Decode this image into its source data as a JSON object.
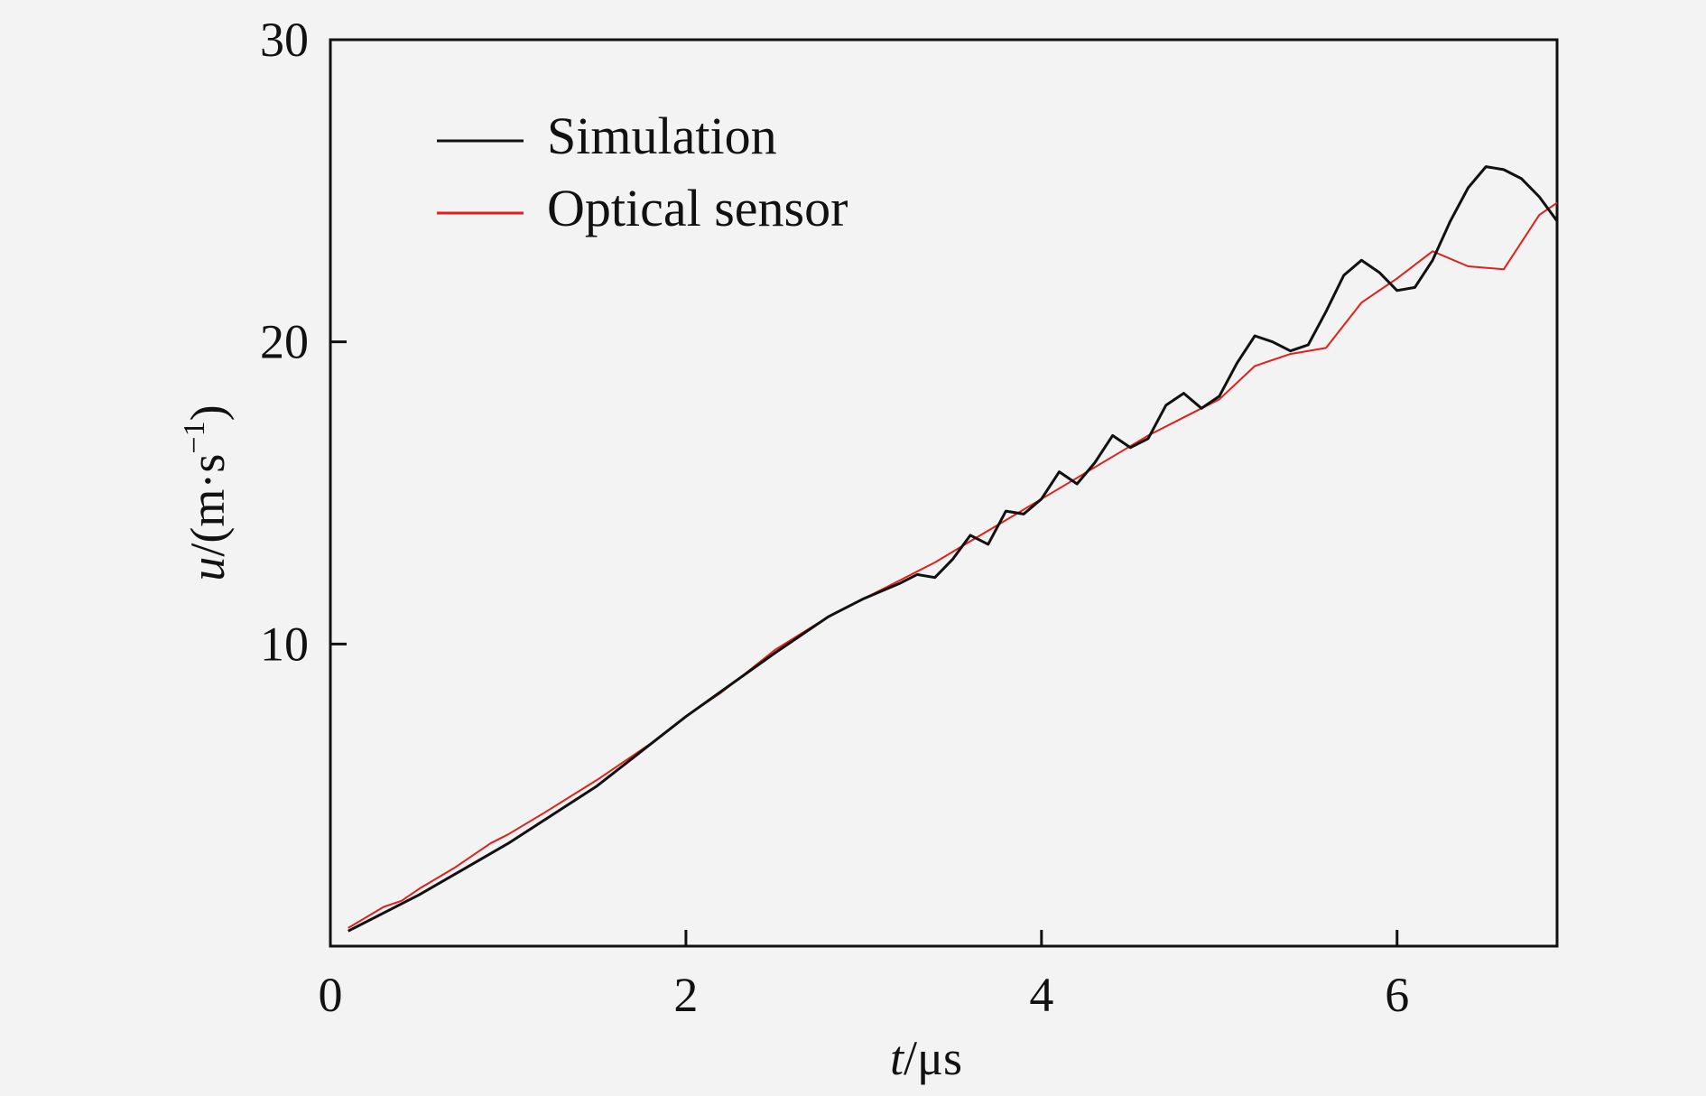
{
  "chart_data": {
    "type": "line",
    "xlabel_var": "t",
    "xlabel_unit": "/μs",
    "ylabel_var": "u",
    "ylabel_unit_pre": "/(m·s",
    "ylabel_unit_sup": "−1",
    "ylabel_unit_post": ")",
    "xlim": [
      0,
      6.9
    ],
    "ylim": [
      0,
      30
    ],
    "x_ticks": [
      0,
      2,
      4,
      6
    ],
    "y_ticks": [
      10,
      20,
      30
    ],
    "x_tick_labels": [
      "0",
      "2",
      "4",
      "6"
    ],
    "y_tick_labels": [
      "10",
      "20",
      "30"
    ],
    "grid": false,
    "legend_position": "top-left",
    "series": [
      {
        "name": "Simulation",
        "color": "#111111",
        "x": [
          0.1,
          0.5,
          1.0,
          1.5,
          2.0,
          2.5,
          2.8,
          3.0,
          3.2,
          3.3,
          3.4,
          3.5,
          3.6,
          3.7,
          3.8,
          3.9,
          4.0,
          4.1,
          4.2,
          4.3,
          4.4,
          4.5,
          4.6,
          4.7,
          4.8,
          4.9,
          5.0,
          5.1,
          5.2,
          5.3,
          5.4,
          5.5,
          5.6,
          5.7,
          5.8,
          5.9,
          6.0,
          6.1,
          6.2,
          6.3,
          6.4,
          6.5,
          6.6,
          6.7,
          6.8,
          6.9
        ],
        "y": [
          0.5,
          1.7,
          3.4,
          5.3,
          7.6,
          9.7,
          10.9,
          11.5,
          12.0,
          12.3,
          12.2,
          12.8,
          13.6,
          13.3,
          14.4,
          14.3,
          14.8,
          15.7,
          15.3,
          16.0,
          16.9,
          16.5,
          16.8,
          17.9,
          18.3,
          17.8,
          18.2,
          19.3,
          20.2,
          20.0,
          19.7,
          19.9,
          21.0,
          22.2,
          22.7,
          22.3,
          21.7,
          21.8,
          22.7,
          24.0,
          25.1,
          25.8,
          25.7,
          25.4,
          24.8,
          24.0
        ]
      },
      {
        "name": "Optical sensor",
        "color": "#e0201c",
        "x": [
          0.1,
          0.3,
          0.4,
          0.5,
          0.7,
          0.9,
          1.0,
          1.2,
          1.5,
          1.8,
          2.0,
          2.2,
          2.5,
          2.8,
          3.0,
          3.2,
          3.4,
          3.6,
          3.8,
          4.0,
          4.2,
          4.4,
          4.6,
          4.8,
          5.0,
          5.2,
          5.4,
          5.6,
          5.8,
          6.0,
          6.2,
          6.4,
          6.6,
          6.8,
          6.9
        ],
        "y": [
          0.6,
          1.3,
          1.5,
          1.9,
          2.6,
          3.4,
          3.7,
          4.4,
          5.5,
          6.7,
          7.6,
          8.4,
          9.8,
          10.9,
          11.5,
          12.1,
          12.7,
          13.4,
          14.1,
          14.8,
          15.5,
          16.2,
          16.9,
          17.5,
          18.1,
          19.2,
          19.6,
          19.8,
          21.3,
          22.1,
          23.0,
          22.5,
          22.4,
          24.2,
          24.6
        ]
      }
    ]
  }
}
